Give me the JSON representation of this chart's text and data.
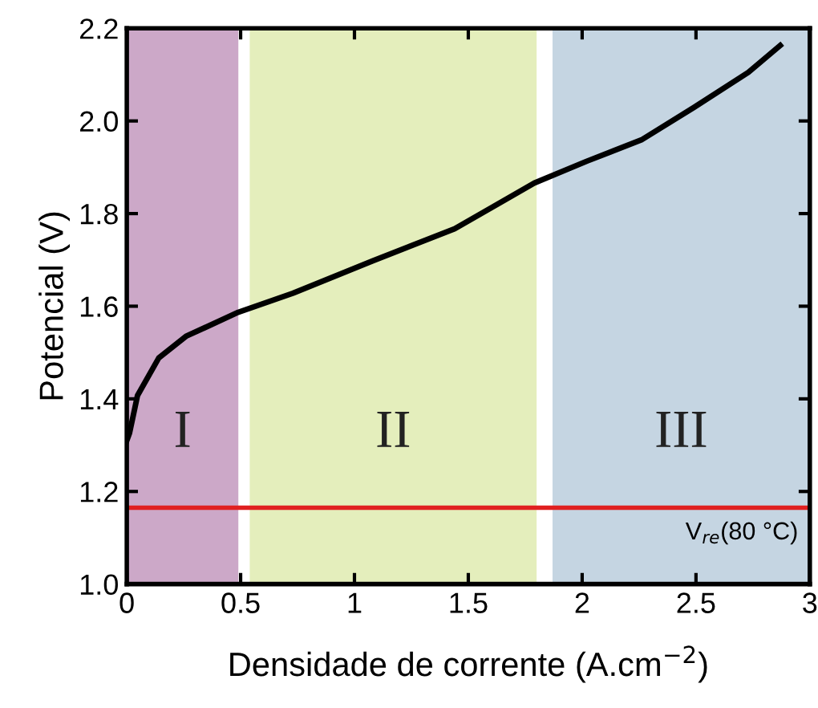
{
  "chart_data": {
    "type": "line",
    "xlabel": "Densidade de corrente (A.cm$^{−2}$)",
    "ylabel": "Potencial (V)",
    "x": [
      0,
      0.012,
      0.047,
      0.14,
      0.26,
      0.49,
      0.73,
      1.08,
      1.44,
      1.79,
      2.02,
      2.26,
      2.49,
      2.73,
      2.87
    ],
    "series": [
      {
        "color": "#000000",
        "values": [
          1.31,
          1.326,
          1.407,
          1.488,
          1.535,
          1.587,
          1.628,
          1.698,
          1.767,
          1.866,
          1.913,
          1.959,
          2.029,
          2.105,
          2.163
        ]
      }
    ],
    "xlim": [
      0,
      3
    ],
    "ylim": [
      1.0,
      2.2
    ],
    "xticks": [
      0,
      0.5,
      1,
      1.5,
      2,
      2.5,
      3
    ],
    "yticks": [
      {
        "value": 1.0,
        "label": "1.0"
      },
      1.2,
      1.4,
      1.6,
      1.8,
      {
        "value": 2.0,
        "label": "2.0"
      },
      2.2
    ],
    "bands": [
      {
        "axis": "x",
        "from": 0,
        "to": 0.49,
        "label": "I",
        "color": "#cca8c8"
      },
      {
        "axis": "x",
        "from": 0.54,
        "to": 1.8,
        "label": "II",
        "color": "#e4eebc"
      },
      {
        "axis": "x",
        "from": 1.87,
        "to": 3,
        "label": "III",
        "color": "#c5d5e2"
      }
    ],
    "ref_lines": [
      {
        "axis": "y",
        "value": 1.165,
        "label": "V$_{re}$(80 °C)",
        "color": "#e02020"
      }
    ],
    "grid": false
  }
}
